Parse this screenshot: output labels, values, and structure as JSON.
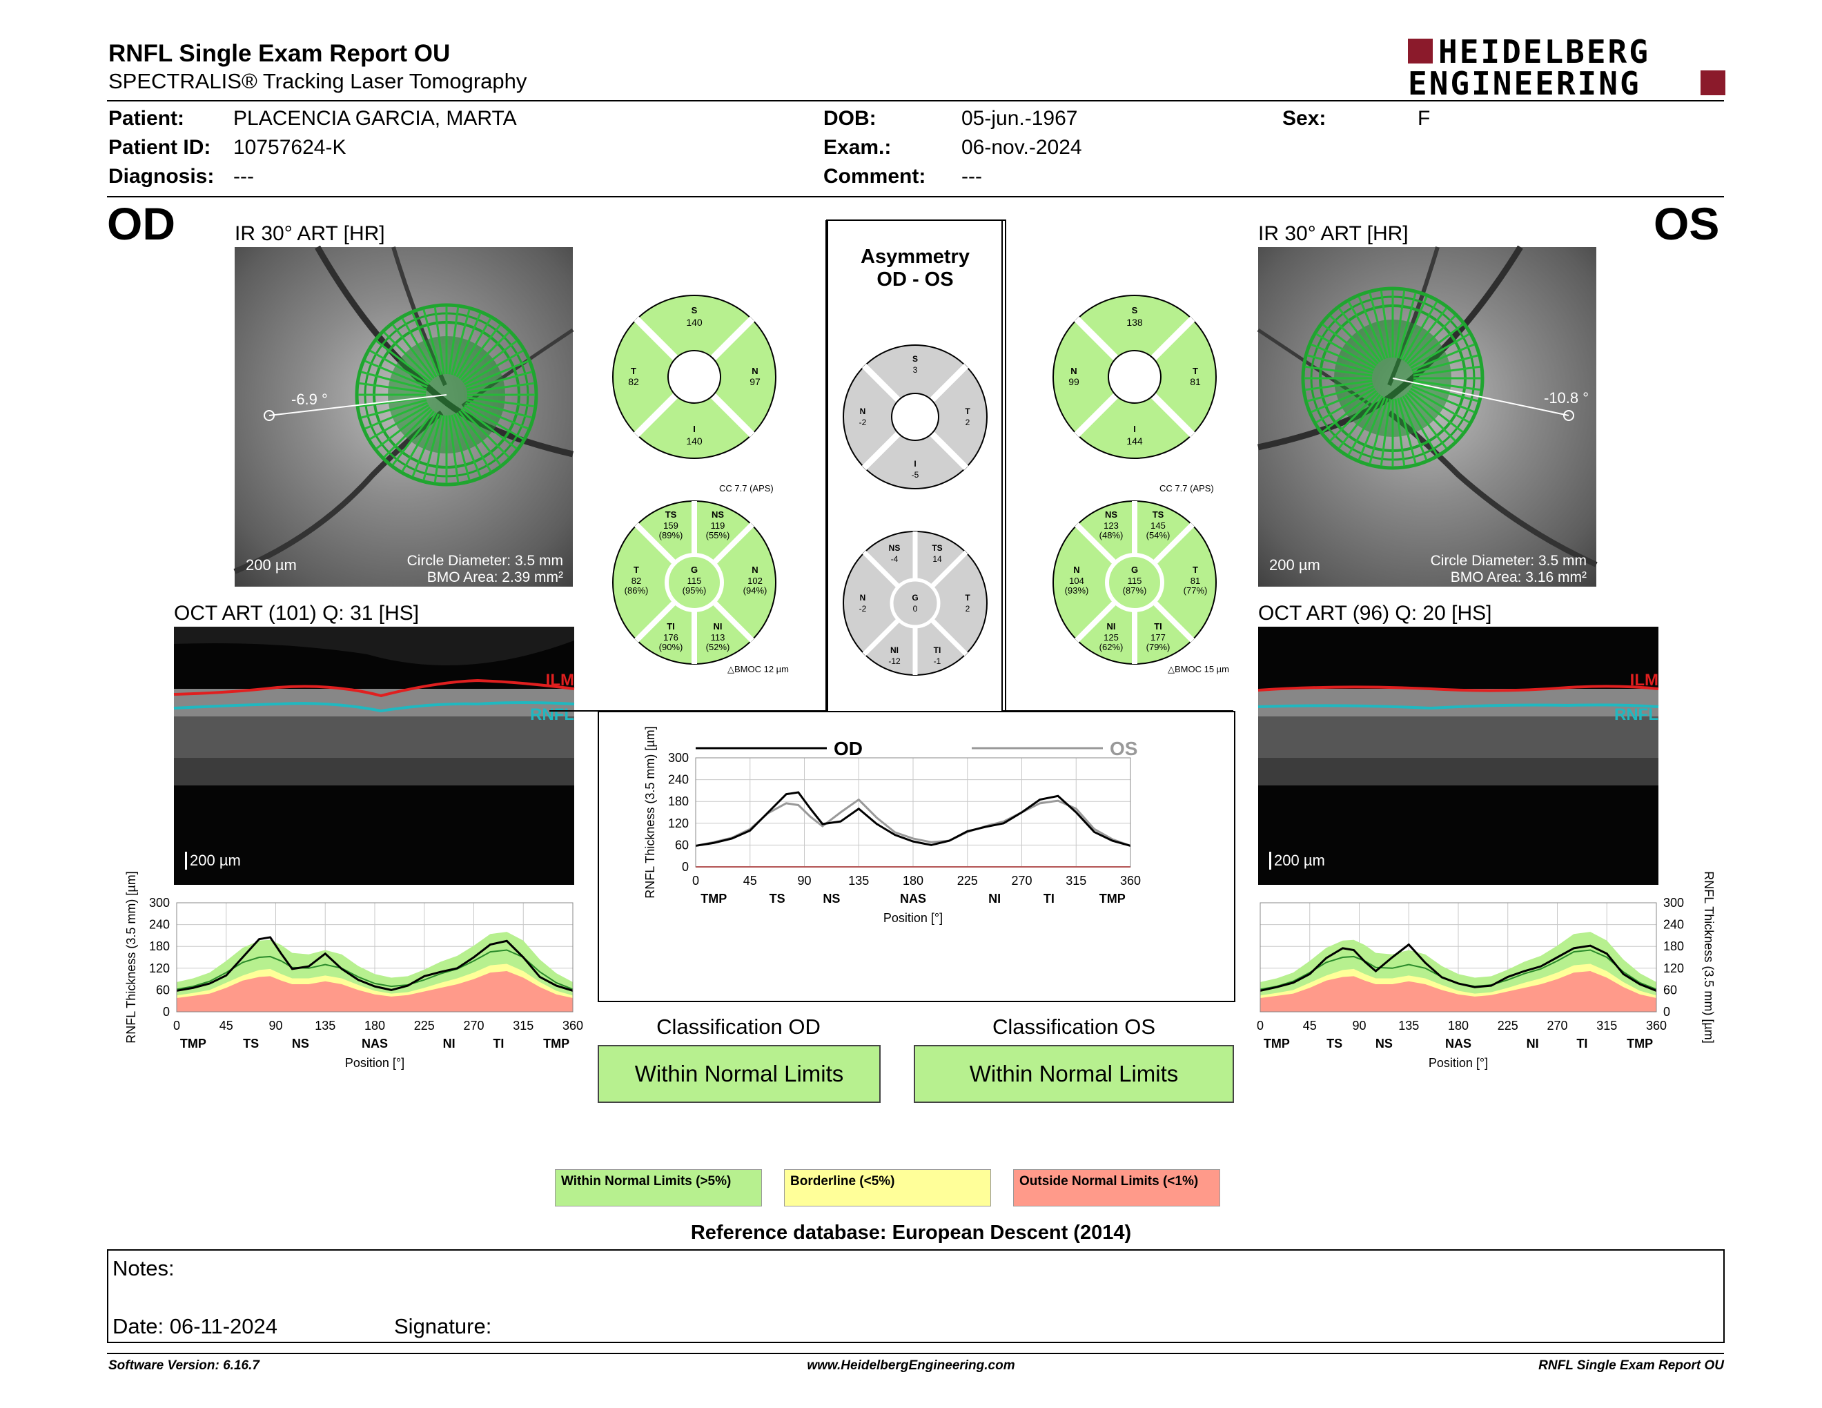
{
  "header": {
    "title": "RNFL Single Exam Report OU",
    "subtitle": "SPECTRALIS® Tracking Laser Tomography",
    "logo_line1": "HEIDELBERG",
    "logo_line2": "ENGINEERING",
    "brand_color": "#8b1a2b"
  },
  "patient": {
    "patient_label": "Patient:",
    "patient_value": "PLACENCIA GARCIA, MARTA",
    "id_label": "Patient ID:",
    "id_value": "10757624-K",
    "diagnosis_label": "Diagnosis:",
    "diagnosis_value": "---",
    "dob_label": "DOB:",
    "dob_value": "05-jun.-1967",
    "exam_label": "Exam.:",
    "exam_value": "06-nov.-2024",
    "comment_label": "Comment:",
    "comment_value": "---",
    "sex_label": "Sex:",
    "sex_value": "F"
  },
  "od": {
    "eye": "OD",
    "ir_label": "IR 30° ART [HR]",
    "angle": "-6.9 °",
    "scale": "200 µm",
    "circle_diameter": "Circle Diameter: 3.5 mm",
    "bmo_area": "BMO Area: 2.39 mm²",
    "oct_label": "OCT ART (101) Q: 31 [HS]",
    "oct_scale": "200 µm",
    "ilm": "ILM",
    "rnfl": "RNFL",
    "quad": {
      "S": "140",
      "N": "97",
      "I": "140",
      "T": "82"
    },
    "cc": "CC 7.7 (APS)",
    "sectors": {
      "TS": "159",
      "TS_p": "(89%)",
      "NS": "119",
      "NS_p": "(55%)",
      "T": "82",
      "T_p": "(86%)",
      "G": "115",
      "G_p": "(95%)",
      "N": "102",
      "N_p": "(94%)",
      "TI": "176",
      "TI_p": "(90%)",
      "NI": "113",
      "NI_p": "(52%)"
    },
    "bmoc": "BMOC 12 µm"
  },
  "os": {
    "eye": "OS",
    "ir_label": "IR 30° ART [HR]",
    "angle": "-10.8 °",
    "scale": "200 µm",
    "circle_diameter": "Circle Diameter: 3.5 mm",
    "bmo_area": "BMO Area: 3.16 mm²",
    "oct_label": "OCT ART (96) Q: 20 [HS]",
    "oct_scale": "200 µm",
    "ilm": "ILM",
    "rnfl": "RNFL",
    "quad": {
      "S": "138",
      "N": "99",
      "I": "144",
      "T": "81"
    },
    "cc": "CC 7.7 (APS)",
    "sectors": {
      "NS": "123",
      "NS_p": "(48%)",
      "TS": "145",
      "TS_p": "(54%)",
      "N": "104",
      "N_p": "(93%)",
      "G": "115",
      "G_p": "(87%)",
      "T": "81",
      "T_p": "(77%)",
      "NI": "125",
      "NI_p": "(62%)",
      "TI": "177",
      "TI_p": "(79%)"
    },
    "bmoc": "BMOC 15 µm"
  },
  "asym": {
    "title1": "Asymmetry",
    "title2": "OD - OS",
    "quad": {
      "S": "3",
      "N": "-2",
      "T": "2",
      "I": "-5"
    },
    "sectors": {
      "NS": "-4",
      "TS": "14",
      "N": "-2",
      "G": "0",
      "T": "2",
      "NI": "-12",
      "TI": "-1"
    }
  },
  "chart_data": [
    {
      "type": "line",
      "name": "od-thickness-profile",
      "x": [
        0,
        15,
        30,
        45,
        60,
        75,
        85,
        95,
        105,
        120,
        135,
        150,
        165,
        180,
        195,
        210,
        225,
        240,
        255,
        270,
        285,
        300,
        315,
        330,
        345,
        360
      ],
      "series": [
        {
          "name": "measured",
          "values": [
            58,
            66,
            78,
            100,
            150,
            200,
            205,
            160,
            118,
            125,
            160,
            118,
            88,
            70,
            60,
            72,
            98,
            110,
            120,
            150,
            185,
            195,
            150,
            96,
            72,
            58
          ]
        },
        {
          "name": "normal",
          "values": [
            62,
            70,
            84,
            108,
            136,
            150,
            152,
            140,
            122,
            120,
            130,
            120,
            96,
            78,
            70,
            74,
            88,
            105,
            118,
            140,
            165,
            170,
            150,
            110,
            80,
            62
          ]
        },
        {
          "name": "p5",
          "values": [
            45,
            52,
            60,
            80,
            100,
            115,
            118,
            104,
            92,
            92,
            100,
            92,
            74,
            58,
            50,
            54,
            66,
            80,
            92,
            108,
            128,
            132,
            112,
            82,
            58,
            45
          ]
        },
        {
          "name": "p1",
          "values": [
            38,
            44,
            50,
            66,
            86,
            96,
            98,
            86,
            76,
            76,
            84,
            76,
            60,
            48,
            42,
            46,
            56,
            66,
            76,
            90,
            108,
            112,
            94,
            68,
            48,
            38
          ]
        },
        {
          "name": "p95",
          "values": [
            82,
            92,
            108,
            140,
            176,
            196,
            198,
            184,
            162,
            158,
            170,
            158,
            126,
            104,
            94,
            98,
            116,
            138,
            154,
            182,
            214,
            220,
            196,
            144,
            106,
            82
          ]
        }
      ],
      "xlabel": "Position [°]",
      "ylabel": "RNFL Thickness (3.5 mm) [µm]",
      "ylim": [
        0,
        300
      ],
      "xticks": [
        0,
        45,
        90,
        135,
        180,
        225,
        270,
        315,
        360
      ],
      "yticks": [
        0,
        60,
        120,
        180,
        240,
        300
      ],
      "sectors": [
        "TMP",
        "TS",
        "NS",
        "NAS",
        "NI",
        "TI",
        "TMP"
      ]
    },
    {
      "type": "line",
      "name": "os-thickness-profile",
      "x": [
        0,
        15,
        30,
        45,
        60,
        75,
        85,
        95,
        105,
        120,
        135,
        150,
        165,
        180,
        195,
        210,
        225,
        240,
        255,
        270,
        285,
        300,
        315,
        330,
        345,
        360
      ],
      "series": [
        {
          "name": "measured",
          "values": [
            58,
            68,
            80,
            104,
            148,
            175,
            170,
            138,
            112,
            150,
            185,
            135,
            95,
            78,
            68,
            72,
            96,
            112,
            125,
            150,
            175,
            182,
            160,
            104,
            76,
            58
          ]
        },
        {
          "name": "normal",
          "values": [
            62,
            70,
            84,
            108,
            136,
            150,
            152,
            140,
            122,
            120,
            130,
            120,
            96,
            78,
            70,
            74,
            88,
            105,
            118,
            140,
            165,
            170,
            150,
            110,
            80,
            62
          ]
        },
        {
          "name": "p5",
          "values": [
            45,
            52,
            60,
            80,
            100,
            115,
            118,
            104,
            92,
            92,
            100,
            92,
            74,
            58,
            50,
            54,
            66,
            80,
            92,
            108,
            128,
            132,
            112,
            82,
            58,
            45
          ]
        },
        {
          "name": "p1",
          "values": [
            38,
            44,
            50,
            66,
            86,
            96,
            98,
            86,
            76,
            76,
            84,
            76,
            60,
            48,
            42,
            46,
            56,
            66,
            76,
            90,
            108,
            112,
            94,
            68,
            48,
            38
          ]
        },
        {
          "name": "p95",
          "values": [
            82,
            92,
            108,
            140,
            176,
            196,
            198,
            184,
            162,
            158,
            170,
            158,
            126,
            104,
            94,
            98,
            116,
            138,
            154,
            182,
            214,
            220,
            196,
            144,
            106,
            82
          ]
        }
      ],
      "xlabel": "Position [°]",
      "ylabel": "RNFL Thickness (3.5 mm) [µm]",
      "ylim": [
        0,
        300
      ],
      "xticks": [
        0,
        45,
        90,
        135,
        180,
        225,
        270,
        315,
        360
      ],
      "yticks": [
        0,
        60,
        120,
        180,
        240,
        300
      ],
      "sectors": [
        "TMP",
        "TS",
        "NS",
        "NAS",
        "NI",
        "TI",
        "TMP"
      ]
    },
    {
      "type": "line",
      "name": "asymmetry-profile",
      "x": [
        0,
        15,
        30,
        45,
        60,
        75,
        85,
        95,
        105,
        120,
        135,
        150,
        165,
        180,
        195,
        210,
        225,
        240,
        255,
        270,
        285,
        300,
        315,
        330,
        345,
        360
      ],
      "series": [
        {
          "name": "OD",
          "values": [
            58,
            66,
            78,
            100,
            150,
            200,
            205,
            160,
            118,
            125,
            160,
            118,
            88,
            70,
            60,
            72,
            98,
            110,
            120,
            150,
            185,
            195,
            150,
            96,
            72,
            58
          ]
        },
        {
          "name": "OS",
          "values": [
            58,
            68,
            80,
            104,
            148,
            175,
            170,
            138,
            112,
            150,
            185,
            135,
            95,
            78,
            68,
            72,
            96,
            112,
            125,
            150,
            175,
            182,
            160,
            104,
            76,
            58
          ]
        }
      ],
      "xlabel": "Position [°]",
      "ylabel": "RNFL Thickness (3.5 mm) [µm]",
      "ylim": [
        0,
        300
      ],
      "xticks": [
        0,
        45,
        90,
        135,
        180,
        225,
        270,
        315,
        360
      ],
      "yticks": [
        0,
        60,
        120,
        180,
        240,
        300
      ],
      "sectors": [
        "TMP",
        "TS",
        "NS",
        "NAS",
        "NI",
        "TI",
        "TMP"
      ],
      "legend": [
        "OD",
        "OS"
      ]
    }
  ],
  "classification": {
    "od_label": "Classification OD",
    "od_value": "Within Normal Limits",
    "os_label": "Classification OS",
    "os_value": "Within Normal Limits"
  },
  "legend": {
    "normal": "Within Normal Limits (>5%)",
    "borderline": "Borderline (<5%)",
    "outside": "Outside Normal Limits (<1%)",
    "normal_color": "#b7f08f",
    "borderline_color": "#ffff99",
    "outside_color": "#ff9a8a"
  },
  "reference": "Reference database: European Descent (2014)",
  "notes": {
    "label": "Notes:",
    "date": "Date: 06-11-2024",
    "signature": "Signature:"
  },
  "footer": {
    "version": "Software Version: 6.16.7",
    "url": "www.HeidelbergEngineering.com",
    "report": "RNFL Single Exam Report OU"
  }
}
